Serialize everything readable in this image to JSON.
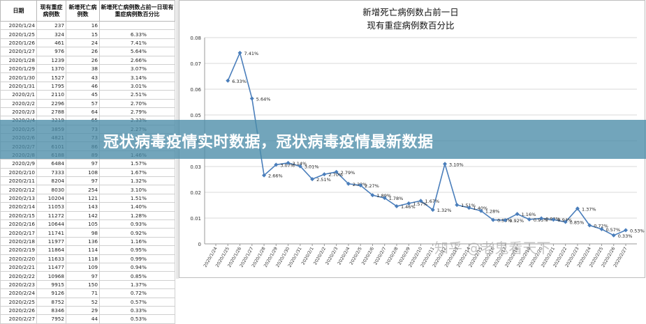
{
  "table": {
    "headers": [
      "日期",
      "现有重症病例数",
      "新增死亡病例数",
      "新增死亡病例数占前一日现有重症病例数百分比"
    ],
    "rows": [
      [
        "2020/1/24",
        "237",
        "16",
        ""
      ],
      [
        "2020/1/25",
        "324",
        "15",
        "6.33%"
      ],
      [
        "2020/1/26",
        "461",
        "24",
        "7.41%"
      ],
      [
        "2020/1/27",
        "976",
        "26",
        "5.64%"
      ],
      [
        "2020/1/28",
        "1239",
        "26",
        "2.66%"
      ],
      [
        "2020/1/29",
        "1370",
        "38",
        "3.07%"
      ],
      [
        "2020/1/30",
        "1527",
        "43",
        "3.14%"
      ],
      [
        "2020/1/31",
        "1795",
        "46",
        "3.01%"
      ],
      [
        "2020/2/1",
        "2110",
        "45",
        "2.51%"
      ],
      [
        "2020/2/2",
        "2296",
        "57",
        "2.70%"
      ],
      [
        "2020/2/3",
        "2788",
        "64",
        "2.79%"
      ],
      [
        "2020/2/4",
        "3219",
        "65",
        "2.33%"
      ],
      [
        "2020/2/5",
        "3859",
        "73",
        "2.27%"
      ],
      [
        "2020/2/6",
        "4821",
        "73",
        "1.89%"
      ],
      [
        "2020/2/7",
        "6101",
        "86",
        "1.78%"
      ],
      [
        "2020/2/8",
        "6188",
        "89",
        "1.46%"
      ],
      [
        "2020/2/9",
        "6484",
        "97",
        "1.57%"
      ],
      [
        "2020/2/10",
        "7333",
        "108",
        "1.67%"
      ],
      [
        "2020/2/11",
        "8204",
        "97",
        "1.32%"
      ],
      [
        "2020/2/12",
        "8030",
        "254",
        "3.10%"
      ],
      [
        "2020/2/13",
        "10204",
        "121",
        "1.51%"
      ],
      [
        "2020/2/14",
        "11053",
        "143",
        "1.40%"
      ],
      [
        "2020/2/15",
        "11272",
        "142",
        "1.28%"
      ],
      [
        "2020/2/16",
        "10644",
        "105",
        "0.93%"
      ],
      [
        "2020/2/17",
        "11741",
        "98",
        "0.92%"
      ],
      [
        "2020/2/18",
        "11977",
        "136",
        "1.16%"
      ],
      [
        "2020/2/19",
        "11864",
        "114",
        "0.95%"
      ],
      [
        "2020/2/20",
        "11633",
        "118",
        "0.99%"
      ],
      [
        "2020/2/21",
        "11477",
        "109",
        "0.94%"
      ],
      [
        "2020/2/22",
        "10968",
        "97",
        "0.85%"
      ],
      [
        "2020/2/23",
        "9915",
        "150",
        "1.37%"
      ],
      [
        "2020/2/24",
        "9126",
        "71",
        "0.72%"
      ],
      [
        "2020/2/25",
        "8752",
        "52",
        "0.57%"
      ],
      [
        "2020/2/26",
        "8346",
        "29",
        "0.33%"
      ],
      [
        "2020/2/27",
        "7952",
        "44",
        "0.53%"
      ]
    ]
  },
  "chart_data": {
    "type": "line",
    "title": "新增死亡病例数占前一日",
    "subtitle": "现有重症病例数百分比",
    "xlabel": "",
    "ylabel": "",
    "ylim": [
      0,
      0.08
    ],
    "yticks": [
      "0",
      "0.01",
      "0.02",
      "0.03",
      "0.04",
      "0.05",
      "0.06",
      "0.07",
      "0.08"
    ],
    "grid": true,
    "x": [
      "2020/1/24",
      "2020/1/25",
      "2020/1/26",
      "2020/1/27",
      "2020/1/28",
      "2020/1/29",
      "2020/1/30",
      "2020/1/31",
      "2020/2/1",
      "2020/2/2",
      "2020/2/3",
      "2020/2/4",
      "2020/2/5",
      "2020/2/6",
      "2020/2/7",
      "2020/2/8",
      "2020/2/9",
      "2020/2/10",
      "2020/2/11",
      "2020/2/12",
      "2020/2/13",
      "2020/2/14",
      "2020/2/15",
      "2020/2/16",
      "2020/2/17",
      "2020/2/18",
      "2020/2/19",
      "2020/2/20",
      "2020/2/21",
      "2020/2/22",
      "2020/2/23",
      "2020/2/24",
      "2020/2/25",
      "2020/2/26",
      "2020/2/27"
    ],
    "series": [
      {
        "values": [
          null,
          0.0633,
          0.0741,
          0.0564,
          0.0266,
          0.0307,
          0.0314,
          0.0301,
          0.0251,
          0.027,
          0.0279,
          0.0233,
          0.0227,
          0.0189,
          0.0178,
          0.0146,
          0.0157,
          0.0167,
          0.0132,
          0.031,
          0.0151,
          0.014,
          0.0128,
          0.0093,
          0.0092,
          0.0116,
          0.0095,
          0.0099,
          0.0094,
          0.0085,
          0.0137,
          0.0072,
          0.0057,
          0.0033,
          0.0053
        ],
        "labels": [
          "",
          "6.33%",
          "7.41%",
          "5.64%",
          "2.66%",
          "3.07%",
          "3.14%",
          "3.01%",
          "2.51%",
          "2.70%",
          "2.79%",
          "2.33%",
          "2.27%",
          "1.89%",
          "1.78%",
          "1.46%",
          "1.57%",
          "1.67%",
          "1.32%",
          "3.10%",
          "1.51%",
          "1.40%",
          "1.28%",
          "0.93%",
          "0.92%",
          "1.16%",
          "0.95%",
          "0.99%",
          "0.94%",
          "0.85%",
          "1.37%",
          "0.72%",
          "0.57%",
          "0.33%",
          "0.53%"
        ],
        "color": "#4a7ebb"
      }
    ]
  },
  "banner": {
    "text": "冠状病毒疫情实时数据，冠状病毒疫情最新数据"
  },
  "watermark": {
    "text": "知乎 @老鬼看天下"
  },
  "colors": {
    "line": "#4a7ebb",
    "banner": "#4a8ca8",
    "grid": "#d9d9d9"
  }
}
